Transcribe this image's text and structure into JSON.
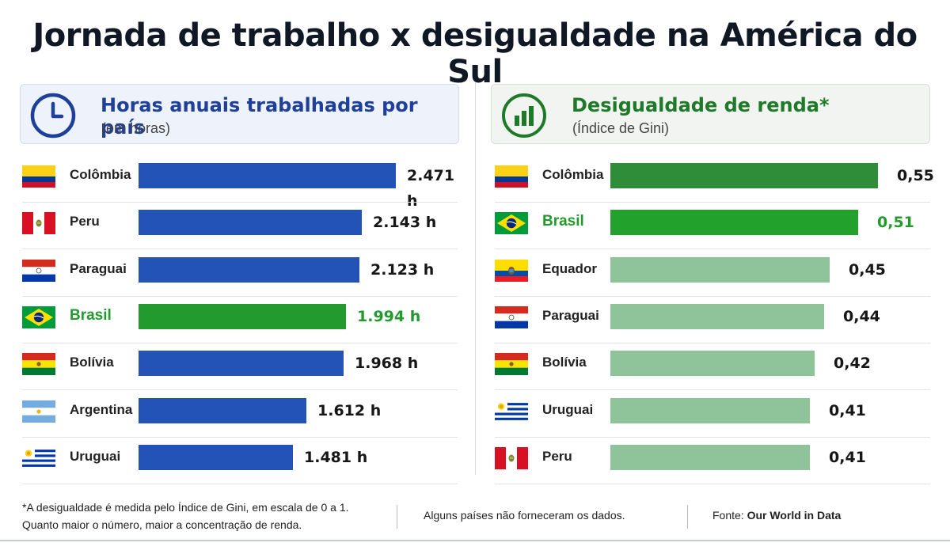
{
  "title": "Jornada de trabalho x desigualdade na América do Sul",
  "chart_data": [
    {
      "type": "bar",
      "title": "Horas anuais trabalhadas por país",
      "subtitle": "(em horas)",
      "icon": "clock-icon",
      "bar_color": "#2453b8",
      "highlight_color": "#239a2d",
      "categories": [
        "Colômbia",
        "Peru",
        "Paraguai",
        "Brasil",
        "Bolívia",
        "Argentina",
        "Uruguai"
      ],
      "values": [
        2471,
        2143,
        2123,
        1994,
        1968,
        1612,
        1481
      ],
      "labels": [
        "2.471 h",
        "2.143 h",
        "2.123 h",
        "1.994 h",
        "1.968 h",
        "1.612 h",
        "1.481 h"
      ],
      "highlight": "Brasil"
    },
    {
      "type": "bar",
      "title": "Desigualdade de renda*",
      "subtitle": "(Índice de Gini)",
      "icon": "bar-chart-icon",
      "bar_color": "#8fc39a",
      "top_color": "#2f8d3a",
      "highlight_color": "#23a12d",
      "categories": [
        "Colômbia",
        "Brasil",
        "Equador",
        "Paraguai",
        "Bolívia",
        "Uruguai",
        "Peru"
      ],
      "values": [
        0.55,
        0.51,
        0.45,
        0.44,
        0.42,
        0.41,
        0.41
      ],
      "labels": [
        "0,55",
        "0,51",
        "0,45",
        "0,44",
        "0,42",
        "0,41",
        "0,41"
      ],
      "highlight": "Brasil"
    }
  ],
  "footer": {
    "note_line1": "*A desigualdade é medida pelo Índice de Gini, em escala de 0 a 1.",
    "note_line2": "Quanto maior o número, maior a concentração de renda.",
    "middle": "Alguns países não forneceram os dados.",
    "source_label": "Fonte:",
    "source_name": "Our World in Data"
  }
}
